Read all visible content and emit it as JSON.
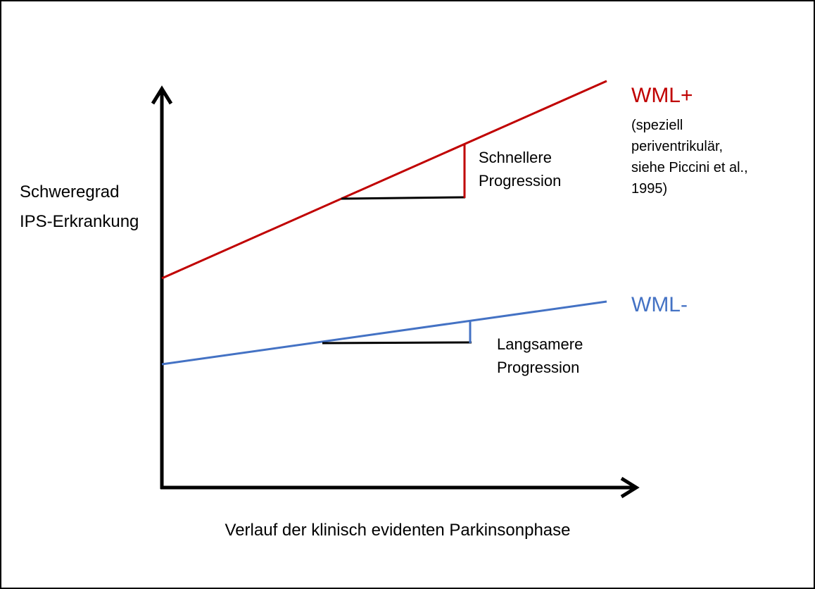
{
  "y_axis_label": [
    "Schweregrad",
    "IPS-Erkrankung"
  ],
  "x_axis_label": "Verlauf der klinisch evidenten Parkinsonphase",
  "lines": [
    {
      "label": "WML+",
      "note": [
        "(speziell",
        "periventrikulär,",
        "siehe Piccini et al.,",
        "1995)"
      ],
      "slope_label": [
        "Schnellere",
        "Progression"
      ]
    },
    {
      "label": "WML-",
      "slope_label": [
        "Langsamere",
        "Progression"
      ]
    }
  ]
}
